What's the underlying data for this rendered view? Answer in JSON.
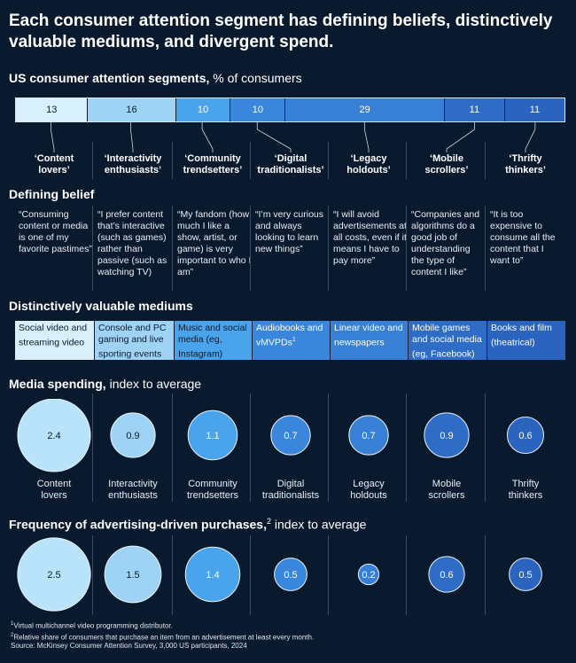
{
  "title": {
    "line1": "Each consumer attention segment has defining beliefs, distinctively",
    "line2": "valuable mediums, and divergent spend."
  },
  "segments_section": {
    "bold": "US consumer attention segments,",
    "rest": " % of consumers"
  },
  "segments": [
    {
      "value": "13",
      "label1": "‘Content",
      "label2": "lovers’",
      "color": "#d8effc"
    },
    {
      "value": "16",
      "label1": "‘Interactivity",
      "label2": "enthusiasts’",
      "color": "#9fd3f5"
    },
    {
      "value": "10",
      "label1": "‘Community",
      "label2": "trendsetters’",
      "color": "#4aa4ec"
    },
    {
      "value": "10",
      "label1": "‘Digital",
      "label2": "traditionalists’",
      "color": "#3a86dc"
    },
    {
      "value": "29",
      "label1": "‘Legacy",
      "label2": "holdouts’",
      "color": "#3780d6"
    },
    {
      "value": "11",
      "label1": "‘Mobile",
      "label2": "scrollers’",
      "color": "#2f6cc6"
    },
    {
      "value": "11",
      "label1": "‘Thrifty",
      "label2": "thinkers’",
      "color": "#2b64be"
    }
  ],
  "belief_section": {
    "bold": "Defining belief"
  },
  "beliefs": [
    "“Consuming content or media is one of my favorite pastimes”",
    "“I prefer content that’s interactive (such as games) rather than passive (such as watching TV)",
    "“My fandom (how much I like a show, artist, or game) is very important to who I am”",
    "“I’m very curious and always looking to learn new things”",
    "“I will avoid advertisements at all costs, even if it means I have to pay more”",
    "“Companies and algorithms do a good job of understanding the type of content I like”",
    "“It is too expensive to consume all the content that I want to”"
  ],
  "mediums_section": {
    "bold": "Distinctively valuable mediums"
  },
  "mediums": [
    {
      "text": "Social video and streaming video",
      "sup": "",
      "color": "#d8effc",
      "text_color": "#0a1a2e"
    },
    {
      "text": "Console and PC gaming and live sporting events",
      "sup": "",
      "color": "#9fd3f5",
      "text_color": "#0a1a2e"
    },
    {
      "text": "Music and social media (eg, Instagram)",
      "sup": "",
      "color": "#4aa4ec",
      "text_color": "#0a1a2e"
    },
    {
      "text": "Audiobooks and vMVPDs",
      "sup": "1",
      "color": "#3a86dc",
      "text_color": "#ffffff"
    },
    {
      "text": "Linear video and newspapers",
      "sup": "",
      "color": "#3780d6",
      "text_color": "#ffffff"
    },
    {
      "text": "Mobile games and social media (eg, Facebook)",
      "sup": "",
      "color": "#2f6cc6",
      "text_color": "#ffffff"
    },
    {
      "text": "Books and film (theatrical)",
      "sup": "",
      "color": "#2b64be",
      "text_color": "#ffffff"
    }
  ],
  "spending_section": {
    "bold": "Media spending,",
    "rest": " index to average"
  },
  "category_labels": [
    {
      "line1": "Content",
      "line2": "lovers"
    },
    {
      "line1": "Interactivity",
      "line2": "enthusiasts"
    },
    {
      "line1": "Community",
      "line2": "trendsetters"
    },
    {
      "line1": "Digital",
      "line2": "traditionalists"
    },
    {
      "line1": "Legacy",
      "line2": "holdouts"
    },
    {
      "line1": "Mobile",
      "line2": "scrollers"
    },
    {
      "line1": "Thrifty",
      "line2": "thinkers"
    }
  ],
  "purchases_section": {
    "bold": "Frequency of advertising-driven purchases,",
    "sup": "2",
    "rest": " index to average"
  },
  "chart_data": [
    {
      "type": "bar",
      "categories": [
        "‘Content lovers’",
        "‘Interactivity enthusiasts’",
        "‘Community trendsetters’",
        "‘Digital traditionalists’",
        "‘Legacy holdouts’",
        "‘Mobile scrollers’",
        "‘Thrifty thinkers’"
      ],
      "values": [
        13,
        16,
        10,
        10,
        29,
        11,
        11
      ],
      "title": "US consumer attention segments, % of consumers"
    },
    {
      "type": "scatter",
      "categories": [
        "Content lovers",
        "Interactivity enthusiasts",
        "Community trendsetters",
        "Digital traditionalists",
        "Legacy holdouts",
        "Mobile scrollers",
        "Thrifty thinkers"
      ],
      "values": [
        2.4,
        0.9,
        1.1,
        0.7,
        0.7,
        0.9,
        0.6
      ],
      "labels": [
        "2.4",
        "0.9",
        "1.1",
        "0.7",
        "0.7",
        "0.9",
        "0.6"
      ],
      "title": "Media spending, index to average"
    },
    {
      "type": "scatter",
      "categories": [
        "Content lovers",
        "Interactivity enthusiasts",
        "Community trendsetters",
        "Digital traditionalists",
        "Legacy holdouts",
        "Mobile scrollers",
        "Thrifty thinkers"
      ],
      "values": [
        2.5,
        1.5,
        1.4,
        0.5,
        0.2,
        0.6,
        0.5
      ],
      "labels": [
        "2.5",
        "1.5",
        "1.4",
        "0.5",
        "0.2",
        "0.6",
        "0.5"
      ],
      "title": "Frequency of advertising-driven purchases, index to average"
    }
  ],
  "footnotes": {
    "fn1_mark": "1",
    "fn1": "Virtual multichannel video programming distributor.",
    "fn2_mark": "2",
    "fn2": "Relative share of consumers that purchase an item from an advertisement at least every month.",
    "source": "Source: McKinsey Consumer Attention Survey, 3,000 US participants, 2024"
  }
}
